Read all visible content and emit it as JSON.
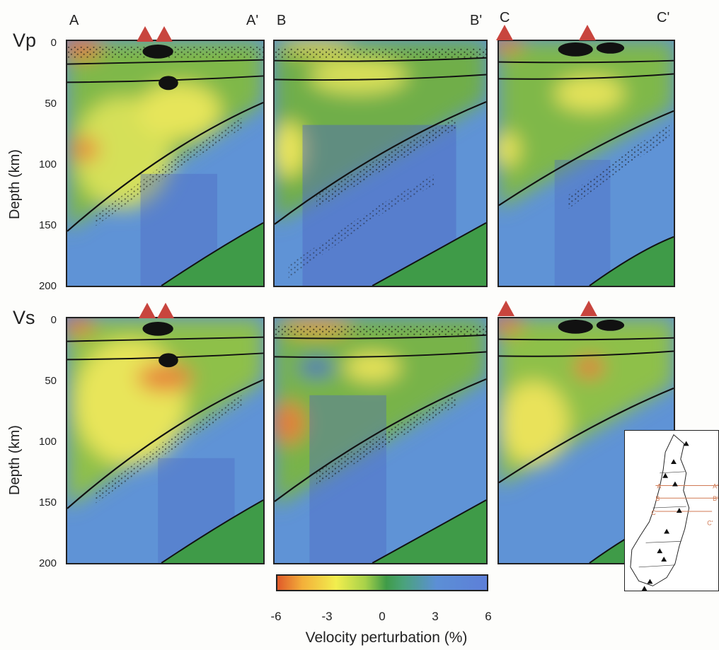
{
  "profiles": {
    "a_start": "A",
    "a_end": "A'",
    "b_start": "B",
    "b_end": "B'",
    "c_start": "C",
    "c_end": "C'"
  },
  "rows": {
    "top": "Vp",
    "bottom": "Vs"
  },
  "depth_axis": {
    "label": "Depth (km)",
    "ticks": [
      "0",
      "50",
      "100",
      "150",
      "200"
    ]
  },
  "colorbar": {
    "title": "Velocity perturbation (%)",
    "ticks": [
      "-6",
      "-3",
      "0",
      "3",
      "6"
    ],
    "low_color": "#e05a2a",
    "mid_color": "#3f9b48",
    "high_color": "#5d7fd8"
  },
  "volcano_color": "#c8453e",
  "inset_map": {
    "labels": [
      "A",
      "A'",
      "B",
      "B'",
      "C",
      "C'"
    ]
  }
}
